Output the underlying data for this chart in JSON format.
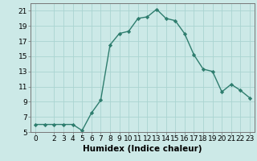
{
  "x": [
    0,
    1,
    2,
    3,
    4,
    5,
    6,
    7,
    8,
    9,
    10,
    11,
    12,
    13,
    14,
    15,
    16,
    17,
    18,
    19,
    20,
    21,
    22,
    23
  ],
  "y": [
    6,
    6,
    6,
    6,
    6,
    5.2,
    7.5,
    9.2,
    16.5,
    18.0,
    18.3,
    20.0,
    20.2,
    21.2,
    20.0,
    19.7,
    18.0,
    15.2,
    13.3,
    13.0,
    10.3,
    11.3,
    10.5,
    9.5
  ],
  "line_color": "#2e7d6e",
  "marker": "D",
  "marker_size": 2.2,
  "bg_color": "#cce9e7",
  "grid_color": "#aad4d1",
  "xlabel": "Humidex (Indice chaleur)",
  "xlim": [
    -0.5,
    23.5
  ],
  "ylim": [
    5,
    22
  ],
  "xticks": [
    0,
    2,
    3,
    4,
    5,
    6,
    7,
    8,
    9,
    10,
    11,
    12,
    13,
    14,
    15,
    16,
    17,
    18,
    19,
    20,
    21,
    22,
    23
  ],
  "yticks": [
    5,
    7,
    9,
    11,
    13,
    15,
    17,
    19,
    21
  ],
  "xlabel_fontsize": 7.5,
  "tick_fontsize": 6.5
}
